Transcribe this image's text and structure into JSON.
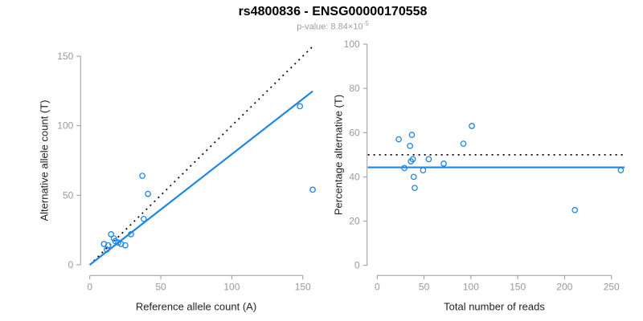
{
  "header": {
    "title": "rs4800836 - ENSG00000170558",
    "p_label": "p-value: 8.84×10",
    "p_exponent": "-5"
  },
  "colors": {
    "accent_blue": "#1E86E5",
    "dotted_black": "#000000",
    "axis_gray": "#999999",
    "tick_label_gray": "#9a9a9a",
    "axis_label_color": "#222222",
    "title_color": "#000000",
    "subtitle_gray": "#9e9e9e"
  },
  "chart_data": [
    {
      "type": "scatter",
      "panel": "left",
      "xlabel": "Reference allele count (A)",
      "ylabel": "Alternative allele count (T)",
      "xticks": [
        0,
        50,
        100,
        150
      ],
      "yticks": [
        0,
        50,
        100,
        150
      ],
      "xlim": [
        0,
        157
      ],
      "ylim": [
        0,
        160
      ],
      "grid": false,
      "points": [
        [
          10,
          15
        ],
        [
          12,
          11
        ],
        [
          13,
          14
        ],
        [
          15,
          22
        ],
        [
          17,
          19
        ],
        [
          18,
          17
        ],
        [
          20,
          16
        ],
        [
          22,
          15
        ],
        [
          25,
          14
        ],
        [
          29,
          22
        ],
        [
          37,
          64
        ],
        [
          41,
          51
        ],
        [
          38,
          33
        ],
        [
          148,
          114
        ],
        [
          157,
          54
        ]
      ],
      "lines": [
        {
          "x1": 0,
          "y1": 0,
          "x2": 157,
          "y2": 157,
          "style": "dotted",
          "color": "#000000"
        },
        {
          "x1": 0,
          "y1": 0,
          "x2": 157,
          "y2": 124.8,
          "style": "solid",
          "color": "#1E86E5"
        }
      ]
    },
    {
      "type": "scatter",
      "panel": "right",
      "xlabel": "Total number of reads",
      "ylabel": "Percentage alternative (T)",
      "xticks": [
        0,
        50,
        100,
        150,
        200,
        250
      ],
      "yticks": [
        0,
        20,
        40,
        60,
        80,
        100
      ],
      "xlim": [
        0,
        260
      ],
      "ylim": [
        0,
        100
      ],
      "grid": false,
      "points": [
        [
          23,
          57
        ],
        [
          29,
          44
        ],
        [
          35,
          54
        ],
        [
          37,
          59
        ],
        [
          36,
          47
        ],
        [
          38,
          48
        ],
        [
          39,
          40
        ],
        [
          40,
          35
        ],
        [
          49,
          43
        ],
        [
          55,
          48
        ],
        [
          71,
          46
        ],
        [
          92,
          55
        ],
        [
          101,
          63
        ],
        [
          211,
          25
        ],
        [
          260,
          43
        ]
      ],
      "lines": [
        {
          "x1": -10,
          "y1": 50,
          "x2": 264,
          "y2": 50,
          "style": "dotted",
          "color": "#000000"
        },
        {
          "x1": -10,
          "y1": 44.3,
          "x2": 264,
          "y2": 44.3,
          "style": "solid",
          "color": "#1E86E5"
        }
      ]
    }
  ]
}
